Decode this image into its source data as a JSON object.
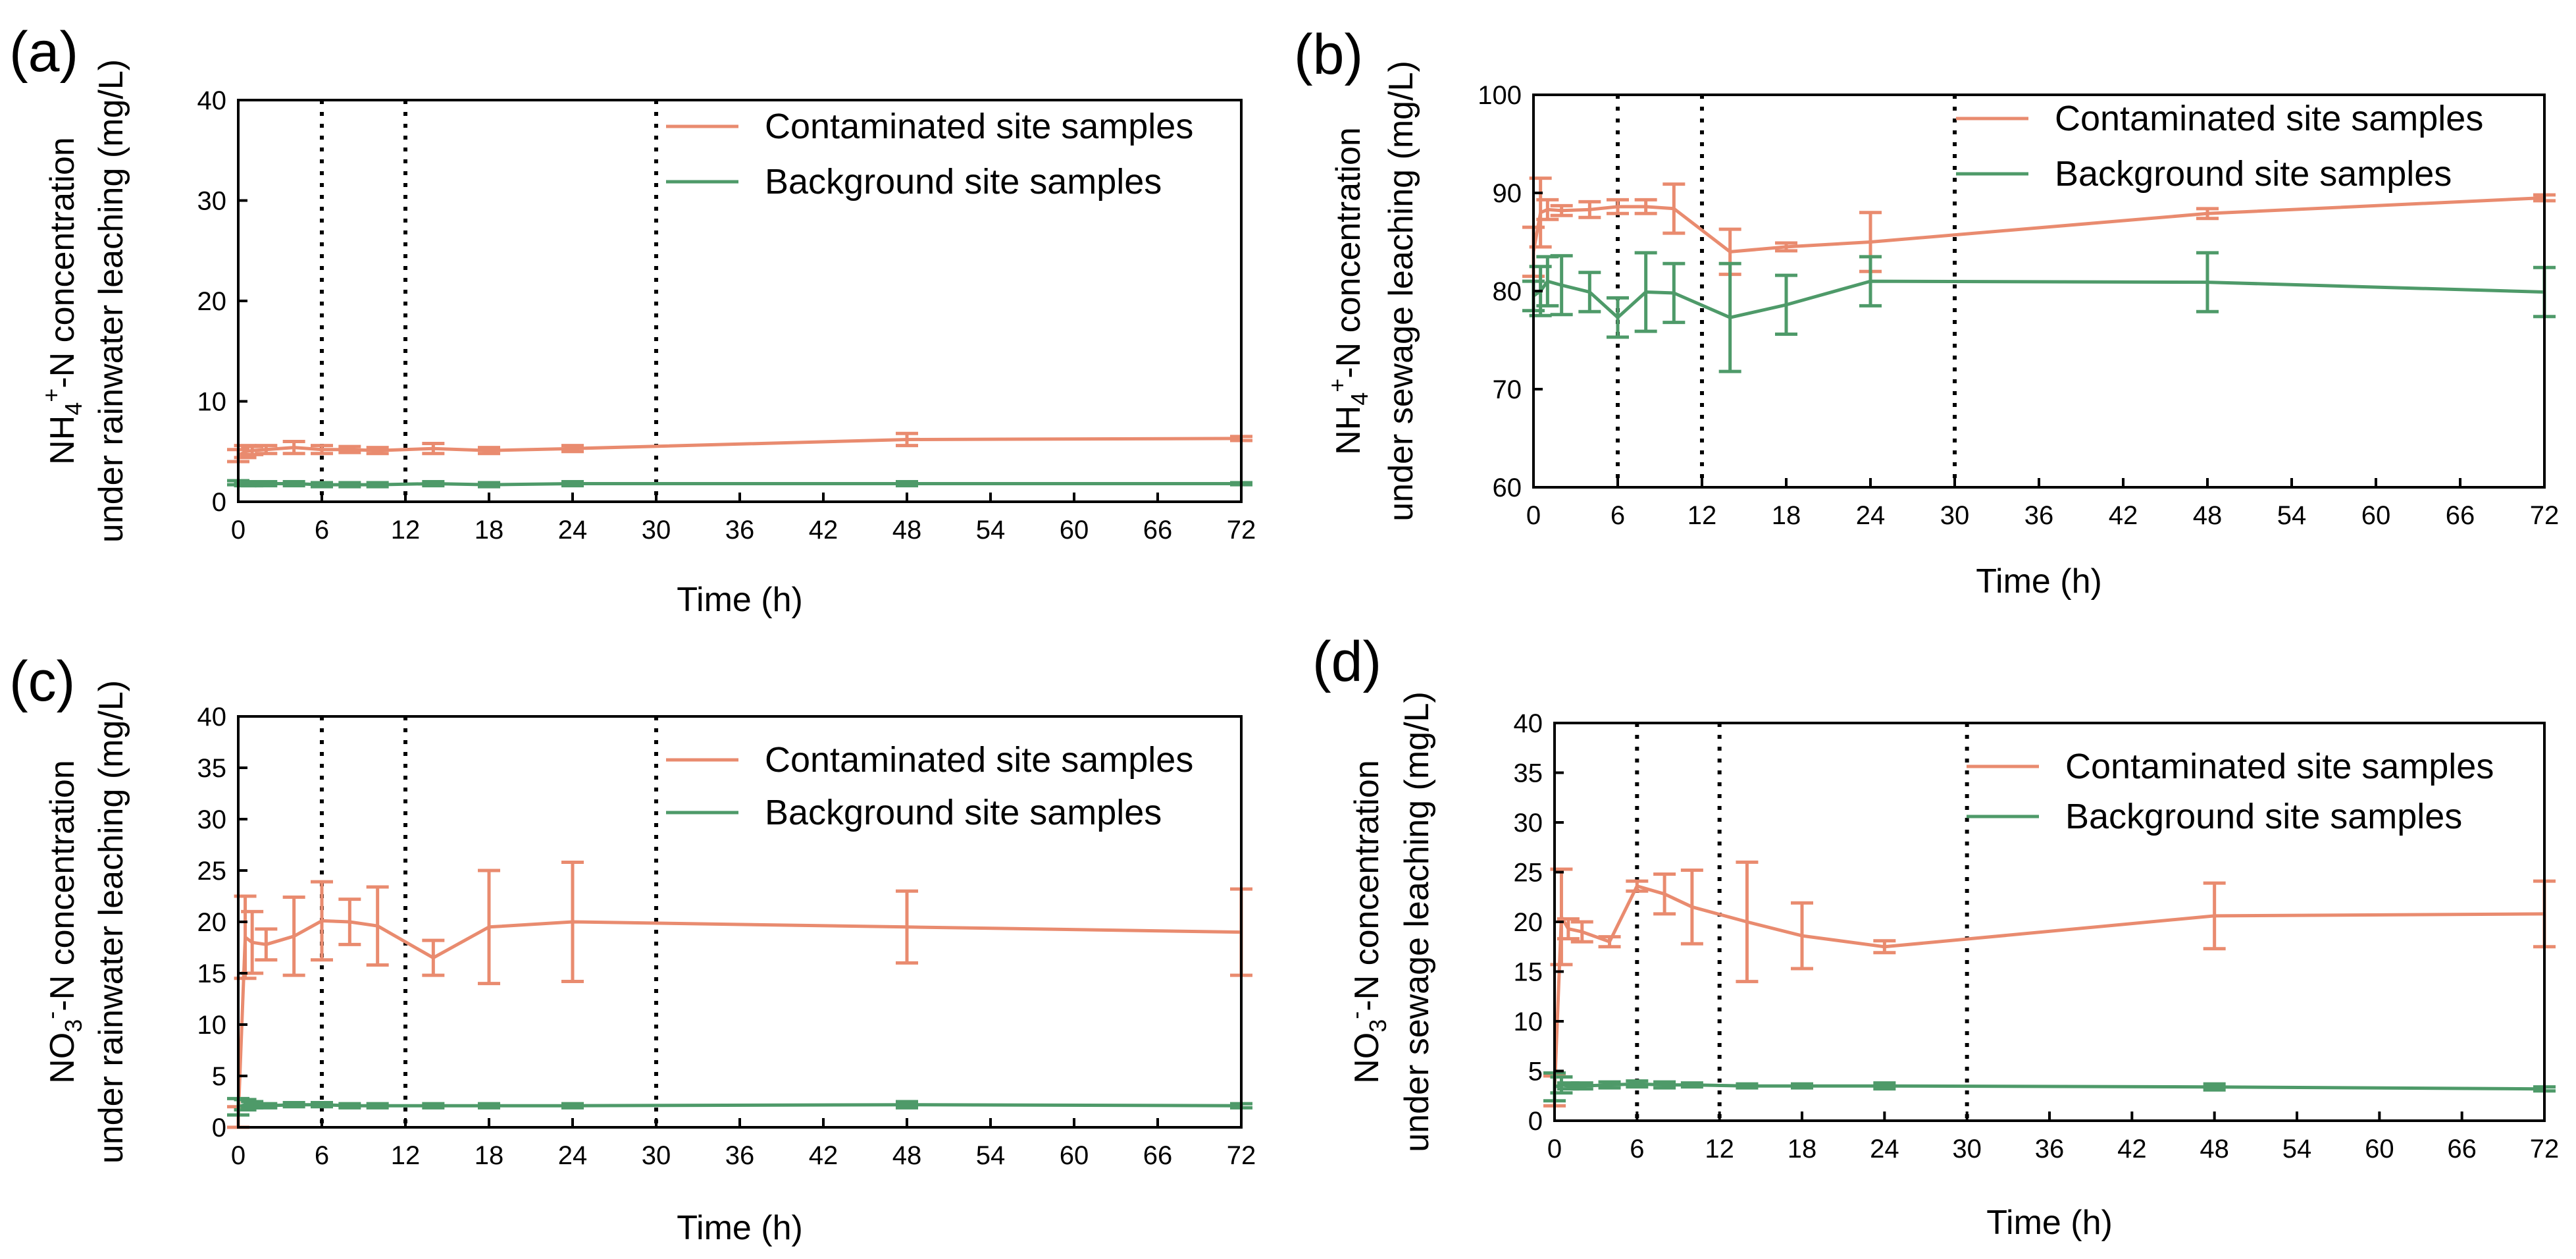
{
  "figure": {
    "colors": {
      "contaminated": "#E98B6F",
      "background": "#4E9A69",
      "axis": "#000000",
      "vline": "#000000"
    }
  },
  "chart_data": [
    {
      "type": "line",
      "panel_label": "(a)",
      "xlabel": "Time (h)",
      "ylabel_line1": "NH4+-N concentration",
      "ylabel_line1_parts": {
        "main": "NH",
        "sub": "4",
        "sup": "+",
        "rest": "-N concentration"
      },
      "ylabel_line2": "under rainwater leaching (mg/L)",
      "xlim": [
        0,
        72
      ],
      "ylim": [
        0,
        40
      ],
      "xticks": [
        0,
        6,
        12,
        18,
        24,
        30,
        36,
        42,
        48,
        54,
        60,
        66,
        72
      ],
      "yticks": [
        0,
        10,
        20,
        30,
        40
      ],
      "vlines": [
        6,
        12,
        30
      ],
      "legend_position": "top-right",
      "series": [
        {
          "name": "Contaminated site samples",
          "color": "#E98B6F",
          "x": [
            0,
            0.5,
            1,
            2,
            4,
            6,
            8,
            10,
            14,
            18,
            24,
            48,
            72
          ],
          "y": [
            4.6,
            5.0,
            5.1,
            5.2,
            5.4,
            5.2,
            5.2,
            5.1,
            5.3,
            5.1,
            5.3,
            6.2,
            6.3
          ],
          "err": [
            0.6,
            0.6,
            0.4,
            0.4,
            0.6,
            0.4,
            0.3,
            0.3,
            0.5,
            0.3,
            0.3,
            0.6,
            0.2
          ]
        },
        {
          "name": "Background site samples",
          "color": "#4E9A69",
          "x": [
            0,
            0.5,
            1,
            2,
            4,
            6,
            8,
            10,
            14,
            18,
            24,
            48,
            72
          ],
          "y": [
            1.9,
            1.8,
            1.8,
            1.8,
            1.8,
            1.7,
            1.7,
            1.7,
            1.8,
            1.7,
            1.8,
            1.8,
            1.8
          ],
          "err": [
            0.2,
            0.2,
            0.2,
            0.2,
            0.2,
            0.2,
            0.2,
            0.2,
            0.2,
            0.2,
            0.2,
            0.2,
            0.1
          ]
        }
      ]
    },
    {
      "type": "line",
      "panel_label": "(b)",
      "xlabel": "Time (h)",
      "ylabel_line1": "NH4+-N concentration",
      "ylabel_line1_parts": {
        "main": "NH",
        "sub": "4",
        "sup": "+",
        "rest": "-N concentration"
      },
      "ylabel_line2": "under sewage leaching (mg/L)",
      "xlim": [
        0,
        72
      ],
      "ylim": [
        60,
        100
      ],
      "xticks": [
        0,
        6,
        12,
        18,
        24,
        30,
        36,
        42,
        48,
        54,
        60,
        66,
        72
      ],
      "yticks": [
        60,
        70,
        80,
        90,
        100
      ],
      "vlines": [
        6,
        12,
        30
      ],
      "legend_position": "top-right",
      "series": [
        {
          "name": "Contaminated site samples",
          "color": "#E98B6F",
          "x": [
            0,
            0.5,
            1,
            2,
            4,
            6,
            8,
            10,
            14,
            18,
            24,
            48,
            72
          ],
          "y": [
            84.0,
            88.0,
            88.3,
            88.2,
            88.3,
            88.6,
            88.6,
            88.4,
            84.0,
            84.5,
            85.0,
            87.9,
            89.5
          ],
          "err": [
            2.5,
            3.5,
            1.0,
            0.5,
            0.8,
            0.7,
            0.7,
            2.5,
            2.3,
            0.4,
            3.0,
            0.5,
            0.3
          ]
        },
        {
          "name": "Background site samples",
          "color": "#4E9A69",
          "x": [
            0,
            0.5,
            1,
            2,
            4,
            6,
            8,
            10,
            14,
            18,
            24,
            48,
            72
          ],
          "y": [
            79.5,
            80.0,
            81.0,
            80.6,
            79.9,
            77.3,
            79.9,
            79.8,
            77.3,
            78.6,
            81.0,
            80.9,
            79.9
          ],
          "err": [
            1.5,
            2.5,
            2.5,
            3.0,
            2.0,
            2.0,
            4.0,
            3.0,
            5.5,
            3.0,
            2.5,
            3.0,
            2.5
          ]
        }
      ]
    },
    {
      "type": "line",
      "panel_label": "(c)",
      "xlabel": "Time (h)",
      "ylabel_line1": "NO3--N concentration",
      "ylabel_line1_parts": {
        "main": "NO",
        "sub": "3",
        "sup": "-",
        "rest": "-N concentration"
      },
      "ylabel_line2": "under rainwater leaching (mg/L)",
      "xlim": [
        0,
        72
      ],
      "ylim": [
        0,
        40
      ],
      "xticks": [
        0,
        6,
        12,
        18,
        24,
        30,
        36,
        42,
        48,
        54,
        60,
        66,
        72
      ],
      "yticks": [
        0,
        5,
        10,
        15,
        20,
        25,
        30,
        35,
        40
      ],
      "vlines": [
        6,
        12,
        30
      ],
      "legend_position": "top-right",
      "series": [
        {
          "name": "Contaminated site samples",
          "color": "#E98B6F",
          "x": [
            0,
            0.5,
            1,
            2,
            4,
            6,
            8,
            10,
            14,
            18,
            24,
            48,
            72
          ],
          "y": [
            1.0,
            18.5,
            18.0,
            17.8,
            18.6,
            20.1,
            20.0,
            19.6,
            16.5,
            19.5,
            20.0,
            19.5,
            19.0
          ],
          "err": [
            1.0,
            4.0,
            3.0,
            1.5,
            3.8,
            3.8,
            2.2,
            3.8,
            1.7,
            5.5,
            5.8,
            3.5,
            4.2
          ]
        },
        {
          "name": "Background site samples",
          "color": "#4E9A69",
          "x": [
            0,
            0.5,
            1,
            2,
            4,
            6,
            8,
            10,
            14,
            18,
            24,
            48,
            72
          ],
          "y": [
            2.0,
            2.2,
            2.2,
            2.1,
            2.2,
            2.2,
            2.1,
            2.1,
            2.1,
            2.1,
            2.1,
            2.2,
            2.1
          ],
          "err": [
            0.8,
            0.5,
            0.3,
            0.2,
            0.2,
            0.2,
            0.2,
            0.2,
            0.2,
            0.2,
            0.2,
            0.3,
            0.2
          ]
        }
      ]
    },
    {
      "type": "line",
      "panel_label": "(d)",
      "xlabel": "Time (h)",
      "ylabel_line1": "NO3--N concentration",
      "ylabel_line1_parts": {
        "main": "NO",
        "sub": "3",
        "sup": "-",
        "rest": "-N concentration"
      },
      "ylabel_line2": "under sewage leaching (mg/L)",
      "xlim": [
        0,
        72
      ],
      "ylim": [
        0,
        40
      ],
      "xticks": [
        0,
        6,
        12,
        18,
        24,
        30,
        36,
        42,
        48,
        54,
        60,
        66,
        72
      ],
      "yticks": [
        0,
        5,
        10,
        15,
        20,
        25,
        30,
        35,
        40
      ],
      "vlines": [
        6,
        12,
        30
      ],
      "legend_position": "top-right",
      "series": [
        {
          "name": "Contaminated site samples",
          "color": "#E98B6F",
          "x": [
            0,
            0.5,
            1,
            2,
            4,
            6,
            8,
            10,
            14,
            18,
            24,
            48,
            72
          ],
          "y": [
            3.0,
            20.5,
            19.3,
            19.0,
            18.0,
            23.6,
            22.8,
            21.5,
            20.0,
            18.6,
            17.5,
            20.6,
            20.8
          ],
          "err": [
            1.5,
            4.8,
            1.0,
            1.0,
            0.5,
            0.5,
            2.0,
            3.7,
            6.0,
            3.3,
            0.6,
            3.3,
            3.3
          ]
        },
        {
          "name": "Background site samples",
          "color": "#4E9A69",
          "x": [
            0,
            0.5,
            1,
            2,
            4,
            6,
            8,
            10,
            14,
            18,
            24,
            48,
            72
          ],
          "y": [
            3.4,
            3.6,
            3.5,
            3.5,
            3.6,
            3.7,
            3.6,
            3.6,
            3.5,
            3.5,
            3.5,
            3.4,
            3.2
          ],
          "err": [
            1.4,
            0.8,
            0.3,
            0.3,
            0.3,
            0.3,
            0.3,
            0.2,
            0.2,
            0.2,
            0.3,
            0.3,
            0.2
          ]
        }
      ]
    }
  ]
}
